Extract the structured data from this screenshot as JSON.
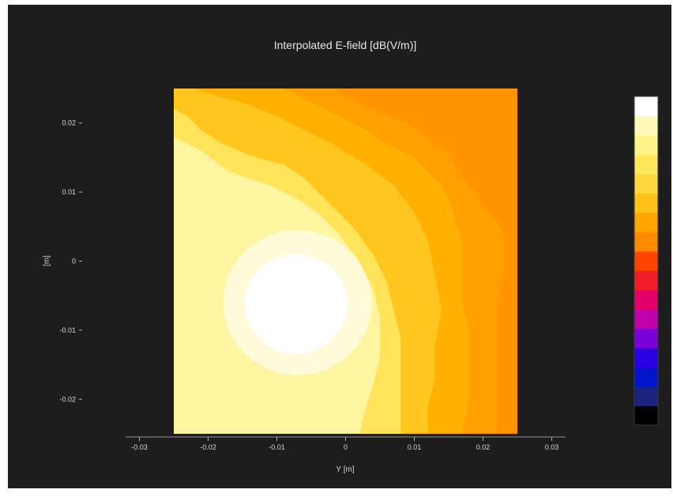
{
  "chart_data": {
    "type": "heatmap",
    "title": "Interpolated E-field [dB(V/m)]",
    "xlabel": "Y [m]",
    "ylabel": "[m]",
    "x_ticks": [
      "-0.03",
      "-0.02",
      "-0.01",
      "0",
      "0.01",
      "0.02",
      "0.03"
    ],
    "x_tick_values": [
      -0.03,
      -0.02,
      -0.01,
      0,
      0.01,
      0.02,
      0.03
    ],
    "y_ticks": [
      "0.02",
      "0.01",
      "0",
      "-0.01",
      "-0.02"
    ],
    "y_tick_values": [
      0.02,
      0.01,
      0,
      -0.01,
      -0.02
    ],
    "xlim": [
      -0.032,
      0.032
    ],
    "ylim": [
      -0.025,
      0.025
    ],
    "data_extent": {
      "x": [
        -0.025,
        0.025
      ],
      "y": [
        -0.025,
        0.025
      ]
    },
    "grid": false,
    "colorbar_position": "right",
    "colormap": [
      "#000000",
      "#1a237e",
      "#0014c8",
      "#2a00e0",
      "#7a00d8",
      "#c000a8",
      "#e4006a",
      "#f01e28",
      "#ff4400",
      "#ff8c00",
      "#ffa500",
      "#ffc21a",
      "#ffd83d",
      "#ffe85c",
      "#fff38a",
      "#fffab8",
      "#ffffff"
    ],
    "peak_location": {
      "x": -0.007,
      "y": -0.006
    },
    "contour_bands": [
      {
        "level": 0,
        "color": "#ffa000",
        "y_vals": [
          0.025,
          0.022,
          0.02,
          0.017,
          0.016,
          0.014,
          0.012,
          0.01,
          0.008,
          0.007,
          0.006,
          0.004,
          0.002,
          -0.002,
          -0.006,
          -0.01,
          -0.015,
          -0.02,
          -0.025
        ],
        "x_vals": [
          -0.002,
          0.004,
          0.009,
          0.013,
          0.015,
          0.016,
          0.017,
          0.019,
          0.02,
          0.021,
          0.022,
          0.023,
          0.023,
          0.023,
          0.022,
          0.022,
          0.022,
          0.022,
          0.022
        ]
      },
      {
        "level": 1,
        "color": "#ffb000",
        "y_vals": [
          0.025,
          0.023,
          0.021,
          0.019,
          0.017,
          0.016,
          0.015,
          0.013,
          0.011,
          0.009,
          0.006,
          0.003,
          -0.002,
          -0.006,
          -0.01,
          -0.015,
          -0.02,
          -0.025
        ],
        "x_vals": [
          -0.009,
          -0.005,
          -0.001,
          0.003,
          0.006,
          0.008,
          0.01,
          0.012,
          0.014,
          0.015,
          0.016,
          0.017,
          0.017,
          0.017,
          0.018,
          0.018,
          0.018,
          0.017
        ]
      },
      {
        "level": 2,
        "color": "#ffc61f",
        "y_vals": [
          0.025,
          0.024,
          0.023,
          0.021,
          0.019,
          0.017,
          0.014,
          0.011,
          0.007,
          0.003,
          -0.002,
          -0.007,
          -0.012,
          -0.017,
          -0.021,
          -0.025
        ],
        "x_vals": [
          -0.022,
          -0.019,
          -0.015,
          -0.01,
          -0.006,
          -0.002,
          0.003,
          0.007,
          0.01,
          0.012,
          0.013,
          0.014,
          0.013,
          0.013,
          0.012,
          0.012
        ]
      },
      {
        "level": 3,
        "color": "#ffe35a",
        "y_vals": [
          0.022,
          0.021,
          0.019,
          0.017,
          0.015,
          0.014,
          0.012,
          0.009,
          0.005,
          0.001,
          -0.003,
          -0.007,
          -0.011,
          -0.014,
          -0.017,
          -0.021,
          -0.025
        ],
        "x_vals": [
          -0.025,
          -0.023,
          -0.021,
          -0.018,
          -0.013,
          -0.009,
          -0.006,
          -0.003,
          0.001,
          0.004,
          0.006,
          0.007,
          0.008,
          0.008,
          0.008,
          0.008,
          0.008
        ]
      },
      {
        "level": 4,
        "color": "#fff4a0",
        "y_vals": [
          0.018,
          0.016,
          0.013,
          0.011,
          0.009,
          0.007,
          0.004,
          0.0,
          -0.004,
          -0.008,
          -0.011,
          -0.014,
          -0.018,
          -0.021,
          -0.025
        ],
        "x_vals": [
          -0.025,
          -0.021,
          -0.017,
          -0.011,
          -0.007,
          -0.004,
          -0.001,
          0.002,
          0.004,
          0.005,
          0.005,
          0.005,
          0.004,
          0.003,
          0.002
        ]
      }
    ],
    "peak_ellipses": [
      {
        "color": "#fffad8",
        "cx": -0.007,
        "cy": -0.006,
        "rx": 0.0108,
        "ry": 0.0105
      },
      {
        "color": "#ffffff",
        "cx": -0.0072,
        "cy": -0.0062,
        "rx": 0.0075,
        "ry": 0.0072
      }
    ]
  }
}
